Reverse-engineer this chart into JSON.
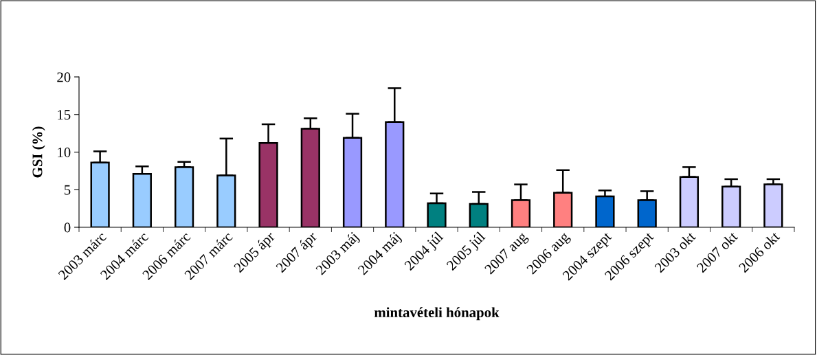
{
  "chart_data": {
    "type": "bar",
    "xlabel": "mintavételi hónapok",
    "ylabel": "GSI (%)",
    "categories": [
      "2003 márc",
      "2004 márc",
      "2006 márc",
      "2007 márc",
      "2005 ápr",
      "2007 ápr",
      "2003 máj",
      "2004 máj",
      "2004 júl",
      "2005 júl",
      "2007 aug",
      "2006 aug",
      "2004 szept",
      "2006 szept",
      "2003 okt",
      "2007 okt",
      "2006 okt"
    ],
    "values": [
      8.6,
      7.1,
      8.0,
      6.9,
      11.2,
      13.1,
      11.9,
      14.0,
      3.2,
      3.1,
      3.6,
      4.6,
      4.1,
      3.6,
      6.7,
      5.4,
      5.7
    ],
    "errors": [
      [
        8.6,
        10.1
      ],
      [
        7.1,
        8.1
      ],
      [
        8.0,
        8.7
      ],
      [
        6.9,
        11.8
      ],
      [
        11.2,
        13.7
      ],
      [
        13.1,
        14.5
      ],
      [
        11.9,
        15.1
      ],
      [
        14.0,
        18.5
      ],
      [
        3.2,
        4.5
      ],
      [
        3.1,
        4.7
      ],
      [
        3.6,
        5.7
      ],
      [
        4.6,
        7.6
      ],
      [
        4.1,
        4.9
      ],
      [
        3.6,
        4.8
      ],
      [
        6.7,
        8.0
      ],
      [
        5.4,
        6.4
      ],
      [
        5.7,
        6.4
      ]
    ],
    "colors": [
      "#99ccff",
      "#99ccff",
      "#99ccff",
      "#99ccff",
      "#993366",
      "#993366",
      "#9999ff",
      "#9999ff",
      "#008080",
      "#008080",
      "#ff8080",
      "#ff8080",
      "#0066cc",
      "#0066cc",
      "#ccccff",
      "#ccccff",
      "#ccccff"
    ],
    "ylim": [
      0,
      20
    ],
    "yticks": [
      0,
      5,
      10,
      15,
      20
    ],
    "grid": false,
    "legend": false
  }
}
